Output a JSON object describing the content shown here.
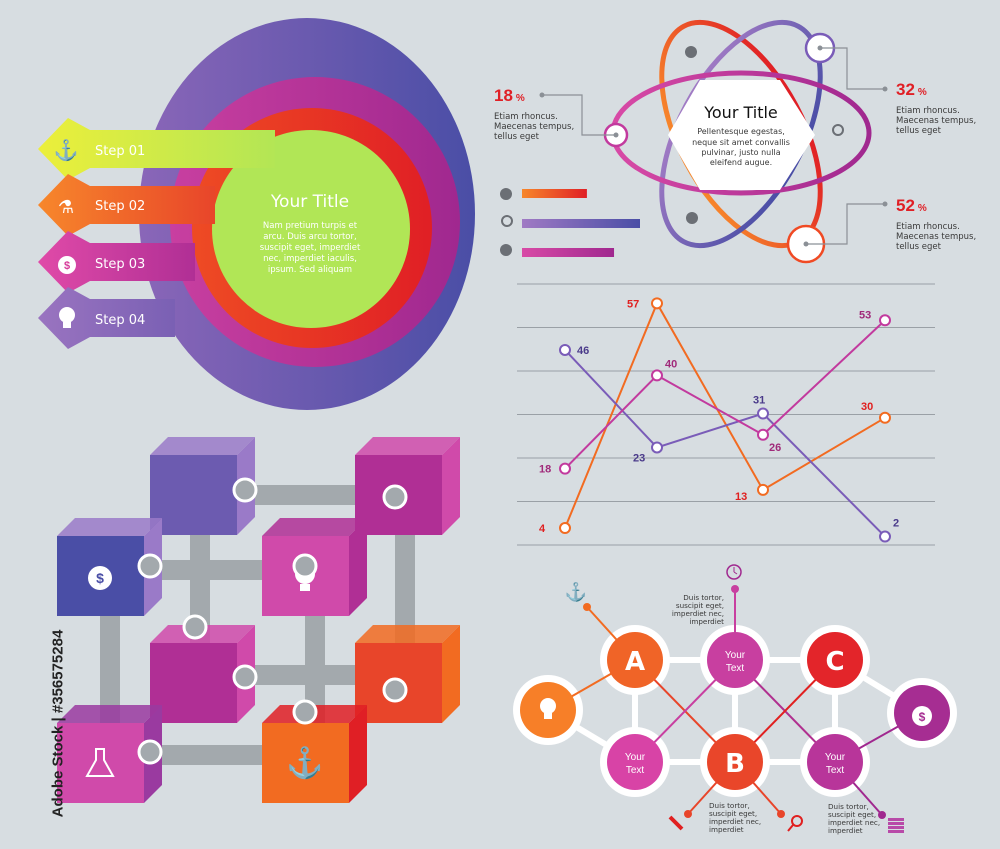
{
  "steps_diagram": {
    "title": "Your Title",
    "body": [
      "Nam pretium turpis et",
      "arcu. Duis arcu tortor,",
      "suscipit eget, imperdiet",
      "nec, imperdiet  iaculis,",
      "ipsum. Sed aliquam"
    ],
    "steps": [
      {
        "label": "Step 01",
        "icon": "anchor-icon",
        "color": "#c6e84a"
      },
      {
        "label": "Step 02",
        "icon": "flask-icon",
        "color": "#f47a2a"
      },
      {
        "label": "Step 03",
        "icon": "money-bag-icon",
        "color": "#d63a9a"
      },
      {
        "label": "Step 04",
        "icon": "lightbulb-icon",
        "color": "#8c6ab5"
      }
    ]
  },
  "atom_diagram": {
    "title": "Your Title",
    "body": [
      "Pellentesque egestas,",
      "neque sit amet convallis",
      "pulvinar, justo nulla",
      "eleifend augue."
    ],
    "callouts": [
      {
        "value": "18",
        "unit": "%",
        "text": [
          "Etiam rhoncus.",
          "Maecenas tempus,",
          "tellus eget"
        ]
      },
      {
        "value": "32",
        "unit": "%",
        "text": [
          "Etiam rhoncus.",
          "Maecenas tempus,",
          "tellus eget"
        ]
      },
      {
        "value": "52",
        "unit": "%",
        "text": [
          "Etiam rhoncus.",
          "Maecenas tempus,",
          "tellus eget"
        ]
      }
    ],
    "bars": [
      {
        "icon": "money-bag-icon",
        "level": 0.55
      },
      {
        "icon": "magnifier-icon",
        "level": 1.0
      },
      {
        "icon": "lightbulb-icon",
        "level": 0.78
      }
    ]
  },
  "chart_data": {
    "type": "line",
    "x": [
      1,
      2,
      3,
      4
    ],
    "ylim": [
      0,
      60
    ],
    "grid": true,
    "series": [
      {
        "values": [
          4,
          57,
          13,
          30
        ],
        "color": "#f26b21"
      },
      {
        "values": [
          46,
          23,
          31,
          2
        ],
        "color": "#7a5cb8"
      },
      {
        "values": [
          18,
          40,
          26,
          53
        ],
        "color": "#c23a9e"
      }
    ]
  },
  "network_diagram": {
    "nodes": [
      {
        "label": "A"
      },
      {
        "label": "Your Text"
      },
      {
        "label": "C"
      },
      {
        "label": "Your Text"
      },
      {
        "label": "B"
      },
      {
        "label": "Your Text"
      }
    ],
    "notes": [
      [
        "Duis tortor,",
        "suscipit eget,",
        "imperdiet nec,",
        "imperdiet"
      ],
      [
        "Duis tortor,",
        "suscipit eget,",
        "imperdiet nec,",
        "imperdiet"
      ],
      [
        "Duis tortor,",
        "suscipit eget,",
        "imperdiet nec,",
        "imperdiet"
      ]
    ]
  },
  "credit": "Adobe Stock | #356575284"
}
